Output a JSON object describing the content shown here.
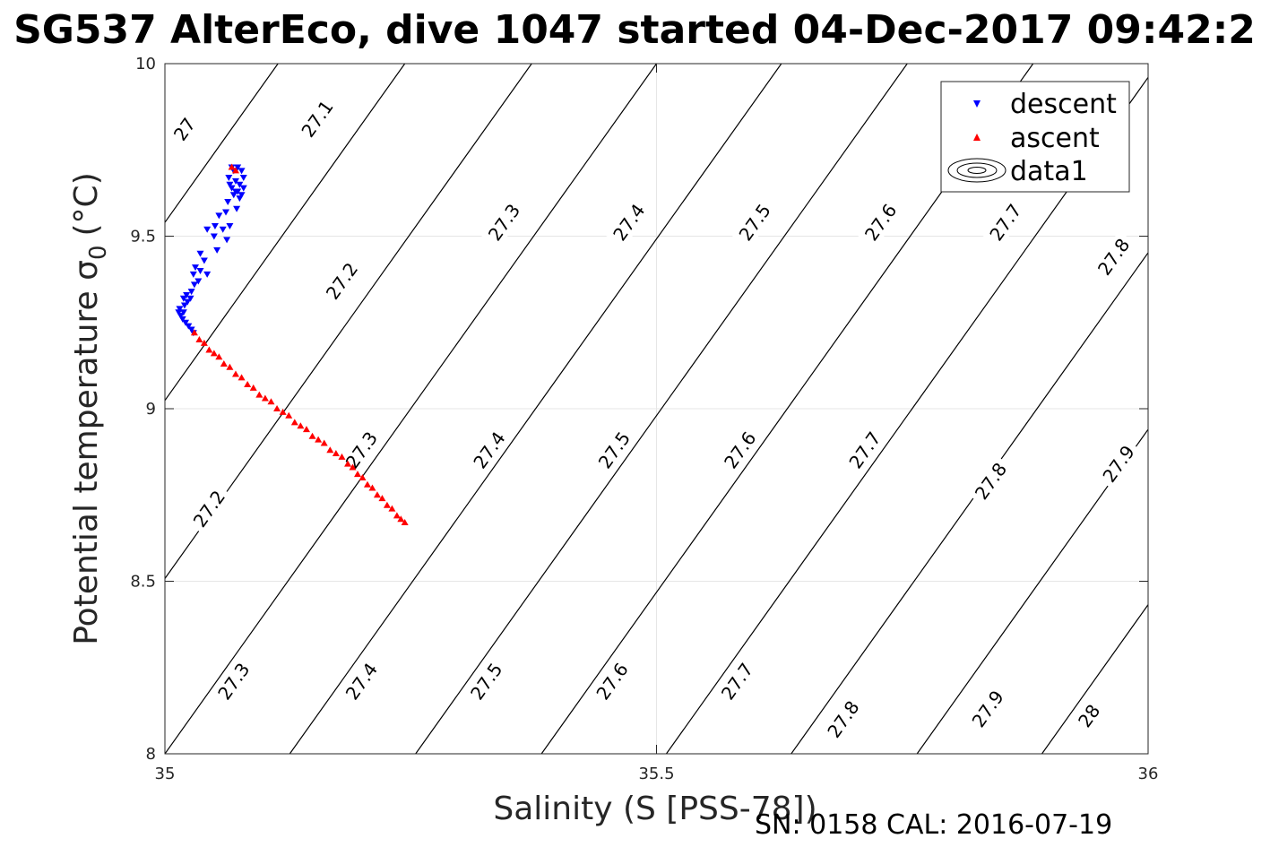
{
  "footer": "SN: 0158  CAL: 2016-07-19",
  "chart_data": {
    "type": "scatter",
    "title": "SG537 AlterEco, dive 1047 started 04-Dec-2017 09:42:2",
    "xlabel": "Salinity (S [PSS-78])",
    "ylabel": "Potential temperature",
    "ylabel_symbol": "σ",
    "ylabel_subscript": "0",
    "ylabel_unit": "(°C)",
    "xlim": [
      35,
      36
    ],
    "ylim": [
      8,
      10
    ],
    "xticks": [
      35,
      35.5,
      36
    ],
    "xtick_labels": [
      "35",
      "35.5",
      "36"
    ],
    "yticks": [
      8,
      8.5,
      9,
      9.5,
      10
    ],
    "ytick_labels": [
      "8",
      "8.5",
      "9",
      "9.5",
      "10"
    ],
    "grid": true,
    "legend_position": "top-right",
    "legend": [
      {
        "label": "descent",
        "marker": "triangle-down",
        "color": "#0000ff"
      },
      {
        "label": "ascent",
        "marker": "triangle-up",
        "color": "#ff0000"
      },
      {
        "label": "data1",
        "marker": "contour",
        "color": "#000000"
      }
    ],
    "contours": {
      "series_name": "data1",
      "color": "#000000",
      "slope_s_per_degC": 0.25,
      "lines": [
        {
          "level": "27",
          "s_at_t8": 34.615
        },
        {
          "level": "27.1",
          "s_at_t8": 34.744
        },
        {
          "level": "27.2",
          "s_at_t8": 34.873
        },
        {
          "level": "27.3",
          "s_at_t8": 35.0
        },
        {
          "level": "27.4",
          "s_at_t8": 35.127
        },
        {
          "level": "27.5",
          "s_at_t8": 35.255
        },
        {
          "level": "27.6",
          "s_at_t8": 35.383
        },
        {
          "level": "27.7",
          "s_at_t8": 35.51
        },
        {
          "level": "27.8",
          "s_at_t8": 35.637
        },
        {
          "level": "27.9",
          "s_at_t8": 35.765
        },
        {
          "level": "28",
          "s_at_t8": 35.892
        }
      ],
      "labels": [
        {
          "text": "27",
          "s": 35.02,
          "t": 9.81
        },
        {
          "text": "27.1",
          "s": 35.155,
          "t": 9.84
        },
        {
          "text": "27.2",
          "s": 35.18,
          "t": 9.37
        },
        {
          "text": "27.2",
          "s": 35.045,
          "t": 8.71
        },
        {
          "text": "27.3",
          "s": 35.345,
          "t": 9.54
        },
        {
          "text": "27.3",
          "s": 35.2,
          "t": 8.88
        },
        {
          "text": "27.3",
          "s": 35.07,
          "t": 8.21
        },
        {
          "text": "27.4",
          "s": 35.472,
          "t": 9.54
        },
        {
          "text": "27.4",
          "s": 35.33,
          "t": 8.88
        },
        {
          "text": "27.4",
          "s": 35.2,
          "t": 8.21
        },
        {
          "text": "27.5",
          "s": 35.6,
          "t": 9.54
        },
        {
          "text": "27.5",
          "s": 35.457,
          "t": 8.88
        },
        {
          "text": "27.5",
          "s": 35.327,
          "t": 8.21
        },
        {
          "text": "27.6",
          "s": 35.728,
          "t": 9.54
        },
        {
          "text": "27.6",
          "s": 35.585,
          "t": 8.88
        },
        {
          "text": "27.6",
          "s": 35.455,
          "t": 8.21
        },
        {
          "text": "27.7",
          "s": 35.855,
          "t": 9.54
        },
        {
          "text": "27.7",
          "s": 35.712,
          "t": 8.88
        },
        {
          "text": "27.7",
          "s": 35.582,
          "t": 8.21
        },
        {
          "text": "27.8",
          "s": 35.965,
          "t": 9.44
        },
        {
          "text": "27.8",
          "s": 35.84,
          "t": 8.79
        },
        {
          "text": "27.8",
          "s": 35.69,
          "t": 8.1
        },
        {
          "text": "27.9",
          "s": 35.97,
          "t": 8.84
        },
        {
          "text": "27.9",
          "s": 35.837,
          "t": 8.13
        },
        {
          "text": "28",
          "s": 35.94,
          "t": 8.11
        }
      ]
    },
    "series": [
      {
        "name": "descent",
        "marker": "triangle-down",
        "color": "#0000ff",
        "points": [
          [
            35.068,
            9.7
          ],
          [
            35.07,
            9.69
          ],
          [
            35.074,
            9.7
          ],
          [
            35.078,
            9.69
          ],
          [
            35.065,
            9.67
          ],
          [
            35.072,
            9.66
          ],
          [
            35.08,
            9.67
          ],
          [
            35.076,
            9.65
          ],
          [
            35.068,
            9.64
          ],
          [
            35.074,
            9.63
          ],
          [
            35.08,
            9.64
          ],
          [
            35.066,
            9.65
          ],
          [
            35.07,
            9.62
          ],
          [
            35.076,
            9.61
          ],
          [
            35.072,
            9.63
          ],
          [
            35.078,
            9.62
          ],
          [
            35.064,
            9.6
          ],
          [
            35.055,
            9.56
          ],
          [
            35.062,
            9.57
          ],
          [
            35.073,
            9.58
          ],
          [
            35.043,
            9.52
          ],
          [
            35.051,
            9.53
          ],
          [
            35.059,
            9.52
          ],
          [
            35.066,
            9.53
          ],
          [
            35.05,
            9.5
          ],
          [
            35.063,
            9.49
          ],
          [
            35.053,
            9.46
          ],
          [
            35.036,
            9.45
          ],
          [
            35.04,
            9.43
          ],
          [
            35.031,
            9.41
          ],
          [
            35.036,
            9.4
          ],
          [
            35.043,
            9.39
          ],
          [
            35.029,
            9.39
          ],
          [
            35.034,
            9.37
          ],
          [
            35.03,
            9.36
          ],
          [
            35.027,
            9.34
          ],
          [
            35.022,
            9.33
          ],
          [
            35.026,
            9.32
          ],
          [
            35.019,
            9.32
          ],
          [
            35.023,
            9.31
          ],
          [
            35.02,
            9.3
          ],
          [
            35.015,
            9.29
          ],
          [
            35.019,
            9.28
          ],
          [
            35.016,
            9.27
          ],
          [
            35.014,
            9.28
          ],
          [
            35.018,
            9.26
          ],
          [
            35.021,
            9.25
          ],
          [
            35.024,
            9.24
          ],
          [
            35.027,
            9.23
          ],
          [
            35.029,
            9.22
          ]
        ]
      },
      {
        "name": "ascent",
        "marker": "triangle-up",
        "color": "#ff0000",
        "points": [
          [
            35.068,
            9.7
          ],
          [
            35.072,
            9.69
          ],
          [
            35.03,
            9.22
          ],
          [
            35.035,
            9.2
          ],
          [
            35.04,
            9.19
          ],
          [
            35.045,
            9.17
          ],
          [
            35.05,
            9.16
          ],
          [
            35.055,
            9.15
          ],
          [
            35.06,
            9.13
          ],
          [
            35.066,
            9.12
          ],
          [
            35.072,
            9.1
          ],
          [
            35.078,
            9.09
          ],
          [
            35.084,
            9.07
          ],
          [
            35.09,
            9.06
          ],
          [
            35.096,
            9.04
          ],
          [
            35.102,
            9.03
          ],
          [
            35.108,
            9.02
          ],
          [
            35.114,
            9.0
          ],
          [
            35.12,
            8.99
          ],
          [
            35.126,
            8.98
          ],
          [
            35.132,
            8.96
          ],
          [
            35.138,
            8.95
          ],
          [
            35.144,
            8.94
          ],
          [
            35.15,
            8.92
          ],
          [
            35.156,
            8.91
          ],
          [
            35.162,
            8.9
          ],
          [
            35.168,
            8.88
          ],
          [
            35.174,
            8.87
          ],
          [
            35.18,
            8.86
          ],
          [
            35.186,
            8.84
          ],
          [
            35.191,
            8.83
          ],
          [
            35.196,
            8.81
          ],
          [
            35.201,
            8.8
          ],
          [
            35.206,
            8.78
          ],
          [
            35.211,
            8.77
          ],
          [
            35.216,
            8.75
          ],
          [
            35.221,
            8.74
          ],
          [
            35.226,
            8.72
          ],
          [
            35.231,
            8.71
          ],
          [
            35.236,
            8.69
          ],
          [
            35.24,
            8.68
          ],
          [
            35.244,
            8.67
          ]
        ]
      }
    ]
  }
}
